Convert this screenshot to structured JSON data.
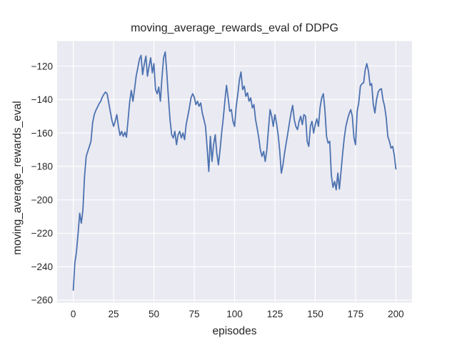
{
  "figure": {
    "background_color": "#FFFFFF",
    "axes_background_color": "#EAEAF2",
    "grid_color": "#FFFFFF",
    "text_color": "#262626",
    "line_color": "#4C72B0"
  },
  "chart_data": {
    "type": "line",
    "title": "moving_average_rewards_eval of DDPG",
    "xlabel": "episodes",
    "ylabel": "moving_average_rewards_eval",
    "legend": false,
    "grid": true,
    "x_ticks": [
      0,
      25,
      50,
      75,
      100,
      125,
      150,
      175,
      200
    ],
    "y_ticks": [
      -260,
      -240,
      -220,
      -200,
      -180,
      -160,
      -140,
      -120
    ],
    "xlim": [
      -10,
      210
    ],
    "ylim": [
      -261.5,
      -105
    ],
    "series_name": "moving_average_rewards_eval",
    "x": [
      0,
      1,
      2,
      3,
      4,
      5,
      6,
      7,
      8,
      9,
      10,
      11,
      12,
      13,
      14,
      15,
      16,
      17,
      18,
      19,
      20,
      21,
      22,
      23,
      24,
      25,
      26,
      27,
      28,
      29,
      30,
      31,
      32,
      33,
      34,
      35,
      36,
      37,
      38,
      39,
      40,
      41,
      42,
      43,
      44,
      45,
      46,
      47,
      48,
      49,
      50,
      51,
      52,
      53,
      54,
      55,
      56,
      57,
      58,
      59,
      60,
      61,
      62,
      63,
      64,
      65,
      66,
      67,
      68,
      69,
      70,
      71,
      72,
      73,
      74,
      75,
      76,
      77,
      78,
      79,
      80,
      81,
      82,
      83,
      84,
      85,
      86,
      87,
      88,
      89,
      90,
      91,
      92,
      93,
      94,
      95,
      96,
      97,
      98,
      99,
      100,
      101,
      102,
      103,
      104,
      105,
      106,
      107,
      108,
      109,
      110,
      111,
      112,
      113,
      114,
      115,
      116,
      117,
      118,
      119,
      120,
      121,
      122,
      123,
      124,
      125,
      126,
      127,
      128,
      129,
      130,
      131,
      132,
      133,
      134,
      135,
      136,
      137,
      138,
      139,
      140,
      141,
      142,
      143,
      144,
      145,
      146,
      147,
      148,
      149,
      150,
      151,
      152,
      153,
      154,
      155,
      156,
      157,
      158,
      159,
      160,
      161,
      162,
      163,
      164,
      165,
      166,
      167,
      168,
      169,
      170,
      171,
      172,
      173,
      174,
      175,
      176,
      177,
      178,
      179,
      180,
      181,
      182,
      183,
      184,
      185,
      186,
      187,
      188,
      189,
      190,
      191,
      192,
      193,
      194,
      195,
      196,
      197,
      198,
      199,
      200
    ],
    "y": [
      -254,
      -238,
      -231,
      -220,
      -208,
      -214,
      -206,
      -186,
      -174,
      -171,
      -168,
      -165,
      -154,
      -149,
      -146.5,
      -144.5,
      -142.5,
      -141,
      -138.5,
      -136.8,
      -135.5,
      -136.5,
      -142,
      -147.5,
      -152.5,
      -156,
      -153,
      -149,
      -156,
      -161.5,
      -159,
      -162,
      -159.5,
      -162.5,
      -152,
      -141,
      -134.5,
      -141,
      -134,
      -126,
      -121,
      -116,
      -113.5,
      -125,
      -119,
      -114,
      -126,
      -120,
      -115,
      -124,
      -118.5,
      -134,
      -136.5,
      -132.5,
      -141,
      -127,
      -115,
      -111.5,
      -124,
      -139,
      -152,
      -161,
      -163,
      -159,
      -167,
      -161,
      -159,
      -163,
      -160,
      -164,
      -155,
      -150,
      -145,
      -139,
      -136.5,
      -138.5,
      -143,
      -141,
      -144,
      -142,
      -148,
      -152,
      -156,
      -169,
      -183,
      -162,
      -177,
      -167,
      -161,
      -172,
      -179,
      -170,
      -160,
      -151,
      -141,
      -131.5,
      -139,
      -147,
      -146,
      -153,
      -156,
      -144,
      -137,
      -128,
      -123.5,
      -134,
      -132,
      -138,
      -136,
      -141,
      -139,
      -145,
      -143,
      -152,
      -157,
      -163,
      -170,
      -174,
      -171,
      -177,
      -170,
      -158,
      -146,
      -150,
      -156,
      -149,
      -154,
      -161,
      -171,
      -184,
      -179,
      -172,
      -166,
      -160,
      -154,
      -148,
      -143.5,
      -152,
      -156,
      -158,
      -153,
      -150,
      -155,
      -149,
      -150,
      -165,
      -168,
      -156,
      -153,
      -160,
      -155,
      -151.5,
      -156,
      -145,
      -139,
      -136.5,
      -146,
      -162,
      -166,
      -165,
      -185,
      -192.5,
      -189,
      -194,
      -184,
      -193.5,
      -183,
      -172,
      -163,
      -156,
      -152,
      -148.5,
      -146,
      -150,
      -163,
      -167,
      -147,
      -142,
      -132,
      -130.5,
      -130,
      -122,
      -118.5,
      -123,
      -131.5,
      -130.5,
      -143,
      -148,
      -140,
      -135.5,
      -134,
      -133.5,
      -140,
      -144,
      -151,
      -162,
      -165,
      -169,
      -168,
      -173,
      -181.5
    ]
  }
}
